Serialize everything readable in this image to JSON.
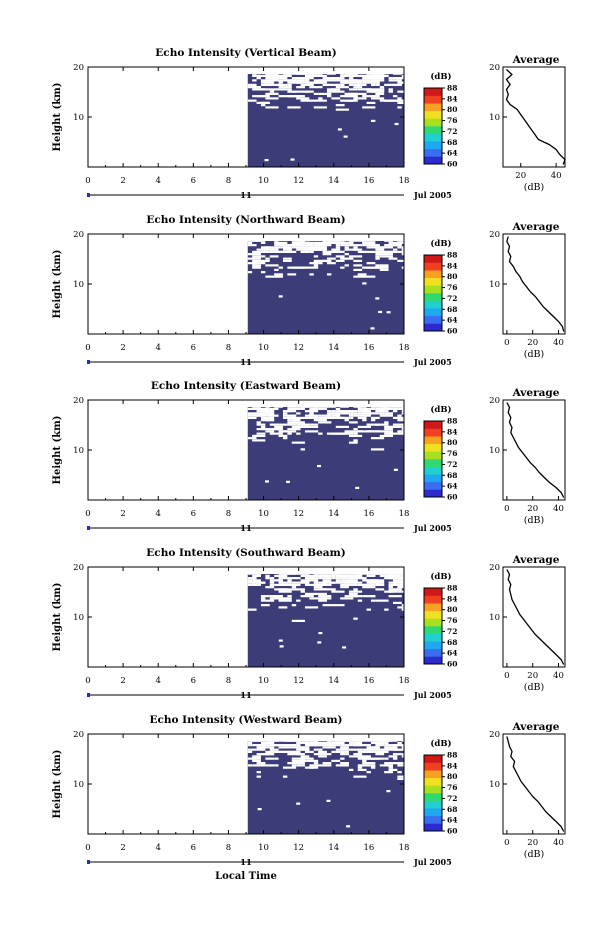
{
  "figure": {
    "x_label": "Local Time",
    "date_day": "11",
    "date_month_year": "Jul 2005",
    "colorbar_unit": "(dB)",
    "colorbar_ticks": [
      "88",
      "84",
      "80",
      "76",
      "72",
      "68",
      "64",
      "60"
    ],
    "colors": {
      "background_echo": "#3c3c78",
      "colorbar": [
        "#2b2bd0",
        "#3a6ef0",
        "#1ea8f0",
        "#20d0d0",
        "#30d870",
        "#a8e020",
        "#f0e020",
        "#f8a020",
        "#f04020",
        "#d01818"
      ]
    }
  },
  "chart_data": [
    {
      "type": "heatmap",
      "title": "Echo Intensity (Vertical Beam)",
      "ylabel": "Height (km)",
      "xlabel": "Local Time",
      "x_ticks": [
        "0",
        "2",
        "4",
        "6",
        "8",
        "10",
        "12",
        "14",
        "16",
        "18"
      ],
      "y_ticks": [
        "20",
        "10"
      ],
      "xlim": [
        0,
        18
      ],
      "ylim": [
        0,
        20
      ],
      "data_start_hour": 9.1,
      "color_scale": {
        "min": 60,
        "max": 88,
        "unit": "dB"
      },
      "colorbar_ticks": [
        "88",
        "84",
        "80",
        "76",
        "72",
        "68",
        "64",
        "60"
      ],
      "average_profile": {
        "title": "Average",
        "xlabel": "(dB)",
        "x_ticks": [
          "20",
          "40"
        ],
        "y_ticks": [
          "20",
          "10"
        ],
        "xlim": [
          10,
          45
        ],
        "ylim": [
          0,
          20
        ],
        "points": [
          [
            44,
            0.5
          ],
          [
            45,
            1.5
          ],
          [
            42,
            2.5
          ],
          [
            40,
            3.5
          ],
          [
            36,
            4.5
          ],
          [
            30,
            5.5
          ],
          [
            28,
            6.5
          ],
          [
            26,
            7.5
          ],
          [
            24,
            8.5
          ],
          [
            22,
            9.5
          ],
          [
            20,
            10.5
          ],
          [
            18,
            11.5
          ],
          [
            14,
            12.5
          ],
          [
            12,
            13.5
          ],
          [
            13,
            14.5
          ],
          [
            12,
            15.5
          ],
          [
            14,
            16.5
          ],
          [
            12,
            17.5
          ],
          [
            15,
            18.5
          ],
          [
            12,
            19.5
          ]
        ]
      }
    },
    {
      "type": "heatmap",
      "title": "Echo Intensity (Northward Beam)",
      "ylabel": "Height (km)",
      "xlabel": "Local Time",
      "x_ticks": [
        "0",
        "2",
        "4",
        "6",
        "8",
        "10",
        "12",
        "14",
        "16",
        "18"
      ],
      "y_ticks": [
        "20",
        "10"
      ],
      "xlim": [
        0,
        18
      ],
      "ylim": [
        0,
        20
      ],
      "data_start_hour": 9.1,
      "color_scale": {
        "min": 60,
        "max": 88,
        "unit": "dB"
      },
      "colorbar_ticks": [
        "88",
        "84",
        "80",
        "76",
        "72",
        "68",
        "64",
        "60"
      ],
      "average_profile": {
        "title": "Average",
        "xlabel": "(dB)",
        "x_ticks": [
          "0",
          "20",
          "40"
        ],
        "y_ticks": [
          "20",
          "10"
        ],
        "xlim": [
          -3,
          45
        ],
        "ylim": [
          0,
          20
        ],
        "points": [
          [
            44,
            0.5
          ],
          [
            43,
            1.5
          ],
          [
            40,
            2.5
          ],
          [
            36,
            3.5
          ],
          [
            32,
            4.5
          ],
          [
            28,
            5.5
          ],
          [
            25,
            6.5
          ],
          [
            22,
            7.5
          ],
          [
            18,
            8.5
          ],
          [
            15,
            9.5
          ],
          [
            12,
            10.5
          ],
          [
            10,
            11.5
          ],
          [
            7,
            12.5
          ],
          [
            5,
            13.5
          ],
          [
            2,
            14.5
          ],
          [
            3,
            15.5
          ],
          [
            1,
            16.5
          ],
          [
            2,
            17.5
          ],
          [
            0,
            18.5
          ],
          [
            1,
            19.5
          ]
        ]
      }
    },
    {
      "type": "heatmap",
      "title": "Echo Intensity (Eastward Beam)",
      "ylabel": "Height (km)",
      "xlabel": "Local Time",
      "x_ticks": [
        "0",
        "2",
        "4",
        "6",
        "8",
        "10",
        "12",
        "14",
        "16",
        "18"
      ],
      "y_ticks": [
        "20",
        "10"
      ],
      "xlim": [
        0,
        18
      ],
      "ylim": [
        0,
        20
      ],
      "data_start_hour": 9.1,
      "color_scale": {
        "min": 60,
        "max": 88,
        "unit": "dB"
      },
      "colorbar_ticks": [
        "88",
        "84",
        "80",
        "76",
        "72",
        "68",
        "64",
        "60"
      ],
      "average_profile": {
        "title": "Average",
        "xlabel": "(dB)",
        "x_ticks": [
          "0",
          "20",
          "40"
        ],
        "y_ticks": [
          "20",
          "10"
        ],
        "xlim": [
          -3,
          45
        ],
        "ylim": [
          0,
          20
        ],
        "points": [
          [
            44,
            0.5
          ],
          [
            42,
            1.5
          ],
          [
            38,
            2.5
          ],
          [
            33,
            3.5
          ],
          [
            29,
            4.5
          ],
          [
            25,
            5.5
          ],
          [
            22,
            6.5
          ],
          [
            18,
            7.5
          ],
          [
            15,
            8.5
          ],
          [
            12,
            9.5
          ],
          [
            9,
            10.5
          ],
          [
            7,
            11.5
          ],
          [
            5,
            12.5
          ],
          [
            3,
            13.5
          ],
          [
            4,
            14.5
          ],
          [
            2,
            15.5
          ],
          [
            3,
            16.5
          ],
          [
            1,
            17.5
          ],
          [
            2,
            18.5
          ],
          [
            0,
            19.5
          ]
        ]
      }
    },
    {
      "type": "heatmap",
      "title": "Echo Intensity (Southward Beam)",
      "ylabel": "Height (km)",
      "xlabel": "Local Time",
      "x_ticks": [
        "0",
        "2",
        "4",
        "6",
        "8",
        "10",
        "12",
        "14",
        "16",
        "18"
      ],
      "y_ticks": [
        "20",
        "10"
      ],
      "xlim": [
        0,
        18
      ],
      "ylim": [
        0,
        20
      ],
      "data_start_hour": 9.1,
      "color_scale": {
        "min": 60,
        "max": 88,
        "unit": "dB"
      },
      "colorbar_ticks": [
        "88",
        "84",
        "80",
        "76",
        "72",
        "68",
        "64",
        "60"
      ],
      "average_profile": {
        "title": "Average",
        "xlabel": "(dB)",
        "x_ticks": [
          "0",
          "20",
          "40"
        ],
        "y_ticks": [
          "20",
          "10"
        ],
        "xlim": [
          -3,
          45
        ],
        "ylim": [
          0,
          20
        ],
        "points": [
          [
            44,
            0.5
          ],
          [
            42,
            1.5
          ],
          [
            38,
            2.5
          ],
          [
            34,
            3.5
          ],
          [
            30,
            4.5
          ],
          [
            26,
            5.5
          ],
          [
            22,
            6.5
          ],
          [
            19,
            7.5
          ],
          [
            16,
            8.5
          ],
          [
            13,
            9.5
          ],
          [
            10,
            10.5
          ],
          [
            8,
            11.5
          ],
          [
            6,
            12.5
          ],
          [
            4,
            13.5
          ],
          [
            3,
            14.5
          ],
          [
            2,
            15.5
          ],
          [
            3,
            16.5
          ],
          [
            1,
            17.5
          ],
          [
            2,
            18.5
          ],
          [
            0,
            19.5
          ]
        ]
      }
    },
    {
      "type": "heatmap",
      "title": "Echo Intensity (Westward Beam)",
      "ylabel": "Height (km)",
      "xlabel": "Local Time",
      "x_ticks": [
        "0",
        "2",
        "4",
        "6",
        "8",
        "10",
        "12",
        "14",
        "16",
        "18"
      ],
      "y_ticks": [
        "20",
        "10"
      ],
      "xlim": [
        0,
        18
      ],
      "ylim": [
        0,
        20
      ],
      "data_start_hour": 9.1,
      "color_scale": {
        "min": 60,
        "max": 88,
        "unit": "dB"
      },
      "colorbar_ticks": [
        "88",
        "84",
        "80",
        "76",
        "72",
        "68",
        "64",
        "60"
      ],
      "average_profile": {
        "title": "Average",
        "xlabel": "(dB)",
        "x_ticks": [
          "0",
          "20",
          "40"
        ],
        "y_ticks": [
          "20",
          "10"
        ],
        "xlim": [
          -3,
          45
        ],
        "ylim": [
          0,
          20
        ],
        "points": [
          [
            44,
            0.5
          ],
          [
            42,
            1.5
          ],
          [
            38,
            2.5
          ],
          [
            34,
            3.5
          ],
          [
            30,
            4.5
          ],
          [
            27,
            5.5
          ],
          [
            24,
            6.5
          ],
          [
            20,
            7.5
          ],
          [
            17,
            8.5
          ],
          [
            14,
            9.5
          ],
          [
            11,
            10.5
          ],
          [
            9,
            11.5
          ],
          [
            7,
            12.5
          ],
          [
            5,
            13.5
          ],
          [
            6,
            14.5
          ],
          [
            3,
            15.5
          ],
          [
            4,
            16.5
          ],
          [
            2,
            17.5
          ],
          [
            1,
            18.5
          ],
          [
            0,
            19.5
          ]
        ]
      }
    }
  ]
}
